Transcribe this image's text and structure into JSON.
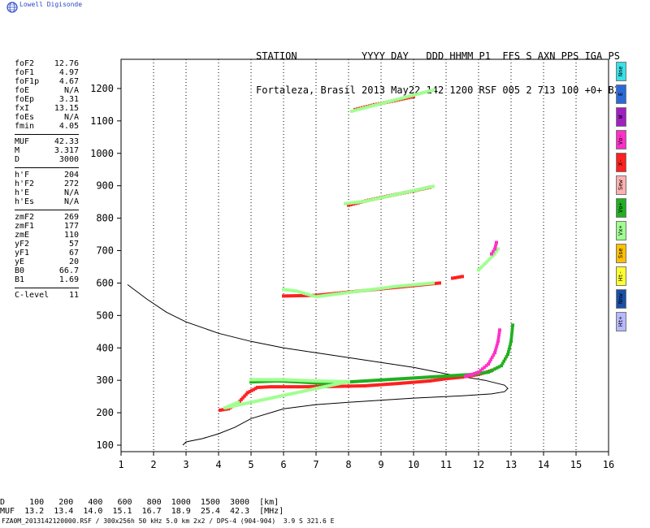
{
  "brand": "Lowell Digisonde",
  "header": {
    "line1": "STATION           YYYY DAY   DDD HHMM P1  FFS S AXN PPS IGA PS",
    "line2": "Fortaleza, Brasil 2013 May22 142 1200 RSF 005 2 713 100 +0+ B2"
  },
  "params": {
    "group1": [
      [
        "foF2",
        "12.76"
      ],
      [
        "foF1",
        "4.97"
      ],
      [
        "foF1p",
        "4.67"
      ],
      [
        "foE",
        "N/A"
      ],
      [
        "foEp",
        "3.31"
      ],
      [
        "fxI",
        "13.15"
      ],
      [
        "foEs",
        "N/A"
      ],
      [
        "fmin",
        "4.05"
      ]
    ],
    "group2": [
      [
        "MUF",
        "42.33"
      ],
      [
        "M",
        "3.317"
      ],
      [
        "D",
        "3000"
      ]
    ],
    "group3": [
      [
        "h'F",
        "204"
      ],
      [
        "h'F2",
        "272"
      ],
      [
        "h'E",
        "N/A"
      ],
      [
        "h'Es",
        "N/A"
      ]
    ],
    "group4": [
      [
        "zmF2",
        "269"
      ],
      [
        "zmF1",
        "177"
      ],
      [
        "zmE",
        "110"
      ],
      [
        "yF2",
        "57"
      ],
      [
        "yF1",
        "67"
      ],
      [
        "yE",
        "20"
      ],
      [
        "B0",
        "66.7"
      ],
      [
        "B1",
        "1.69"
      ]
    ],
    "group5": [
      [
        "C-level",
        "11"
      ]
    ]
  },
  "legend": [
    {
      "label": "Nne",
      "color": "#38e0e8"
    },
    {
      "label": "E",
      "color": "#2a6ad8"
    },
    {
      "label": "W",
      "color": "#a020c0"
    },
    {
      "label": "Vo-",
      "color": "#ff30c8"
    },
    {
      "label": "X-",
      "color": "#ff2020"
    },
    {
      "label": "Sew",
      "color": "#ffb0b0"
    },
    {
      "label": "Vo+",
      "color": "#20b020"
    },
    {
      "label": "Vx+",
      "color": "#a0ff90"
    },
    {
      "label": "Sse",
      "color": "#ffc000"
    },
    {
      "label": "Ht-",
      "color": "#ffff30"
    },
    {
      "label": "Nnw",
      "color": "#1850a8"
    },
    {
      "label": "Ht+",
      "color": "#b8b8ff"
    }
  ],
  "bottom": {
    "d_label": "D",
    "muf_label": "MUF",
    "d_values": [
      "100",
      "200",
      "400",
      "600",
      "800",
      "1000",
      "1500",
      "3000"
    ],
    "muf_values": [
      "13.2",
      "13.4",
      "14.0",
      "15.1",
      "16.7",
      "18.9",
      "25.4",
      "42.3"
    ],
    "d_unit": "[km]",
    "muf_unit": "[MHz]"
  },
  "footer": "FZA0M_2013142120000.RSF / 300x256h 50 kHz 5.0 km 2x2 / DPS-4 (904-904)  3.9 S 321.6 E",
  "chart_data": {
    "type": "scatter",
    "title": "",
    "xlabel": "",
    "ylabel": "",
    "xlim": [
      1,
      16
    ],
    "ylim": [
      80,
      1290
    ],
    "x_ticks": [
      1,
      2,
      3,
      4,
      5,
      6,
      7,
      8,
      9,
      10,
      11,
      12,
      13,
      14,
      15,
      16
    ],
    "y_ticks": [
      100,
      200,
      300,
      400,
      500,
      600,
      700,
      800,
      900,
      1000,
      1100,
      1200
    ],
    "grid": "dotted-x",
    "series": [
      {
        "kind": "profile",
        "color": "#000000",
        "points": [
          [
            1.2,
            595
          ],
          [
            1.8,
            550
          ],
          [
            2.4,
            510
          ],
          [
            3.0,
            480
          ],
          [
            4.0,
            445
          ],
          [
            5.0,
            420
          ],
          [
            6.0,
            400
          ],
          [
            7.0,
            385
          ],
          [
            8.0,
            370
          ],
          [
            9.0,
            355
          ],
          [
            10.0,
            340
          ],
          [
            11.0,
            320
          ],
          [
            11.6,
            310
          ],
          [
            12.2,
            300
          ],
          [
            12.8,
            285
          ],
          [
            12.9,
            275
          ],
          [
            12.8,
            265
          ],
          [
            12.4,
            258
          ],
          [
            11.5,
            252
          ],
          [
            10.0,
            245
          ],
          [
            8.0,
            232
          ],
          [
            7.0,
            225
          ],
          [
            6.0,
            212
          ],
          [
            5.0,
            182
          ],
          [
            4.5,
            155
          ],
          [
            4.0,
            135
          ],
          [
            3.5,
            120
          ],
          [
            3.0,
            110
          ],
          [
            2.9,
            100
          ]
        ]
      },
      {
        "kind": "trace",
        "color": "#ff2020",
        "points": [
          [
            4.05,
            208
          ],
          [
            4.3,
            212
          ],
          [
            4.6,
            230
          ],
          [
            4.9,
            262
          ],
          [
            5.2,
            278
          ],
          [
            5.6,
            280
          ],
          [
            6.5,
            280
          ],
          [
            7.5,
            281
          ],
          [
            8.5,
            283
          ],
          [
            9.5,
            290
          ],
          [
            10.5,
            298
          ],
          [
            11.0,
            305
          ],
          [
            11.5,
            310
          ],
          [
            12.0,
            318
          ],
          [
            12.4,
            330
          ]
        ]
      },
      {
        "kind": "trace",
        "color": "#20b020",
        "points": [
          [
            5.0,
            295
          ],
          [
            5.8,
            298
          ],
          [
            6.5,
            295
          ],
          [
            7.2,
            290
          ],
          [
            11.8,
            318
          ],
          [
            12.3,
            325
          ],
          [
            12.7,
            345
          ],
          [
            12.9,
            380
          ],
          [
            13.0,
            420
          ],
          [
            13.05,
            470
          ]
        ]
      },
      {
        "kind": "trace",
        "color": "#ff30c8",
        "points": [
          [
            11.6,
            312
          ],
          [
            12.0,
            325
          ],
          [
            12.3,
            350
          ],
          [
            12.5,
            385
          ],
          [
            12.6,
            420
          ],
          [
            12.65,
            455
          ]
        ]
      },
      {
        "kind": "trace",
        "color": "#a0ff90",
        "points": [
          [
            5.0,
            302
          ],
          [
            6.0,
            302
          ],
          [
            7.0,
            298
          ],
          [
            8.0,
            296
          ],
          [
            4.2,
            215
          ],
          [
            4.6,
            232
          ]
        ]
      },
      {
        "kind": "trace",
        "color": "#ff2020",
        "points": [
          [
            6.0,
            560
          ],
          [
            7.0,
            562
          ],
          [
            8.0,
            572
          ],
          [
            9.0,
            582
          ],
          [
            10.0,
            592
          ],
          [
            10.8,
            600
          ]
        ]
      },
      {
        "kind": "trace",
        "color": "#a0ff90",
        "points": [
          [
            6.0,
            580
          ],
          [
            6.4,
            575
          ],
          [
            7.0,
            558
          ],
          [
            9.5,
            590
          ],
          [
            10.6,
            600
          ]
        ]
      },
      {
        "kind": "trace",
        "color": "#ff2020",
        "points": [
          [
            11.2,
            615
          ],
          [
            11.5,
            620
          ]
        ]
      },
      {
        "kind": "trace",
        "color": "#a0ff90",
        "points": [
          [
            12.0,
            640
          ],
          [
            12.2,
            660
          ],
          [
            12.5,
            690
          ],
          [
            12.6,
            705
          ]
        ]
      },
      {
        "kind": "trace",
        "color": "#ff30c8",
        "points": [
          [
            12.4,
            690
          ],
          [
            12.5,
            705
          ],
          [
            12.55,
            725
          ]
        ]
      },
      {
        "kind": "trace",
        "color": "#ff2020",
        "points": [
          [
            8.0,
            840
          ],
          [
            8.6,
            855
          ],
          [
            9.2,
            868
          ],
          [
            9.8,
            880
          ],
          [
            10.5,
            895
          ]
        ]
      },
      {
        "kind": "trace",
        "color": "#a0ff90",
        "points": [
          [
            7.9,
            845
          ],
          [
            8.5,
            852
          ],
          [
            10.0,
            885
          ],
          [
            10.6,
            898
          ]
        ]
      },
      {
        "kind": "trace",
        "color": "#ff2020",
        "points": [
          [
            8.2,
            1135
          ],
          [
            8.8,
            1150
          ],
          [
            9.4,
            1162
          ],
          [
            10.0,
            1175
          ]
        ]
      },
      {
        "kind": "trace",
        "color": "#a0ff90",
        "points": [
          [
            8.1,
            1130
          ],
          [
            10.6,
            1195
          ]
        ]
      }
    ]
  }
}
